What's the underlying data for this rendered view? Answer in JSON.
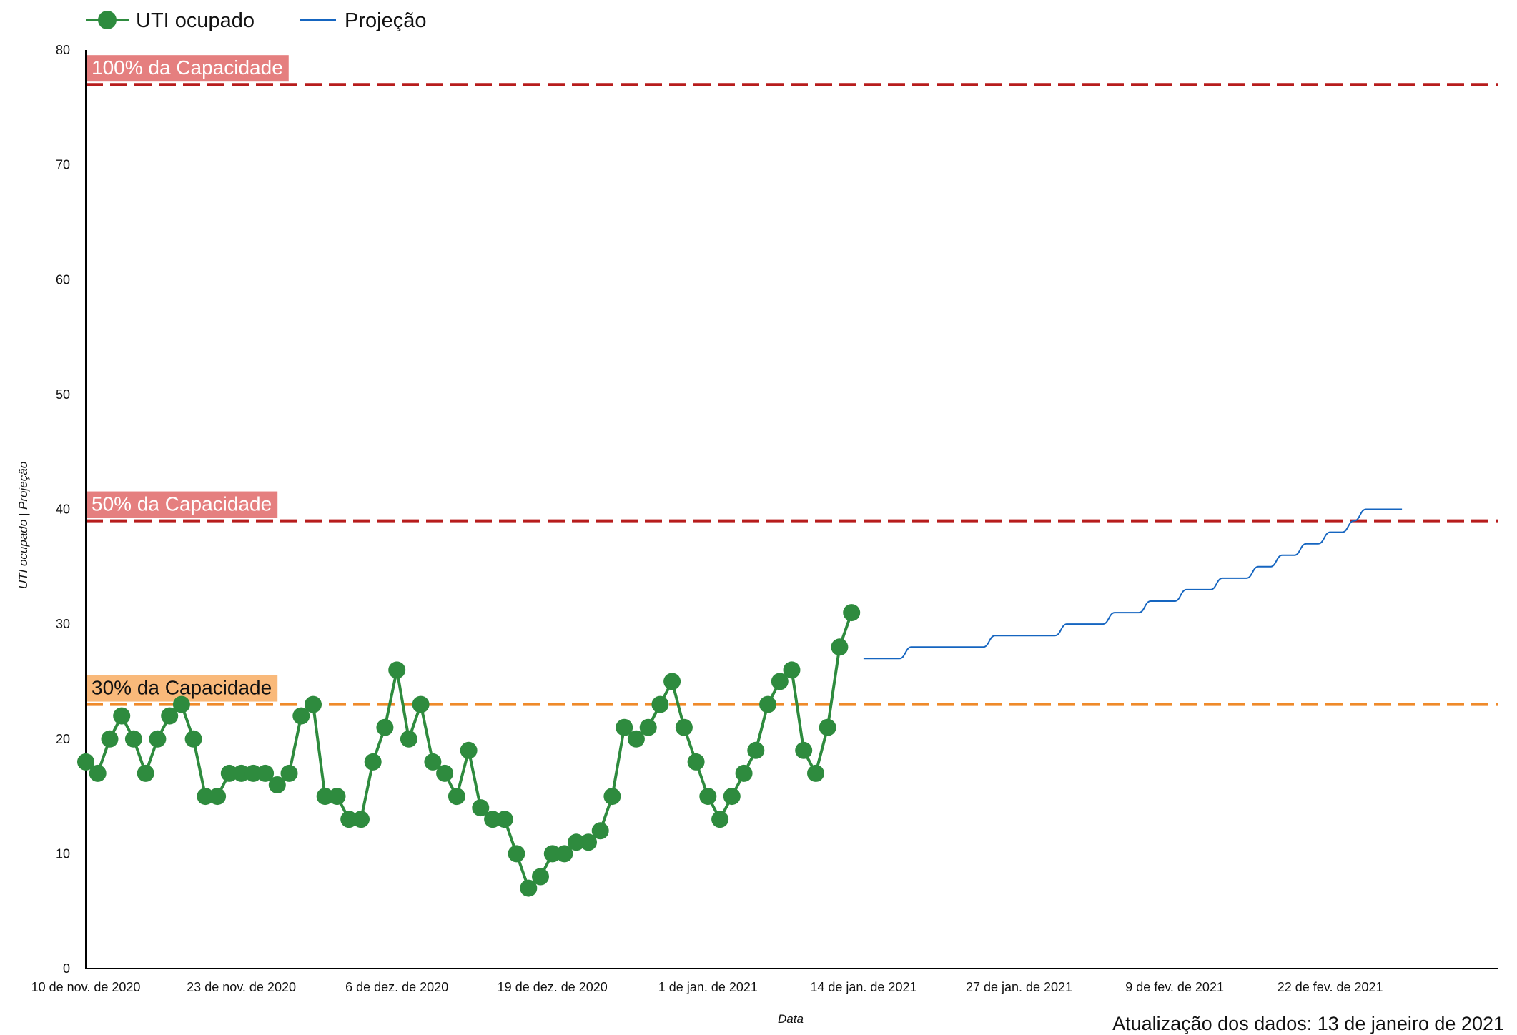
{
  "chart_data": {
    "type": "line",
    "x_axis_label": "Data",
    "y_axis_label": "UTI ocupado | Projeção",
    "y_range": [
      0,
      80
    ],
    "y_ticks": [
      0,
      10,
      20,
      30,
      40,
      50,
      60,
      70,
      80
    ],
    "x_range": [
      "2020-11-10",
      "2021-03-08"
    ],
    "x_tick_labels": [
      {
        "date": "2020-11-10",
        "label": "10 de nov. de 2020"
      },
      {
        "date": "2020-11-23",
        "label": "23 de nov. de 2020"
      },
      {
        "date": "2020-12-06",
        "label": "6 de dez. de 2020"
      },
      {
        "date": "2020-12-19",
        "label": "19 de dez. de 2020"
      },
      {
        "date": "2021-01-01",
        "label": "1 de jan. de 2021"
      },
      {
        "date": "2021-01-14",
        "label": "14 de jan. de 2021"
      },
      {
        "date": "2021-01-27",
        "label": "27 de jan. de 2021"
      },
      {
        "date": "2021-02-09",
        "label": "9 de fev. de 2021"
      },
      {
        "date": "2021-02-22",
        "label": "22 de fev. de 2021"
      }
    ],
    "grid": false,
    "legend_position": "top-left",
    "series": [
      {
        "name": "UTI ocupado",
        "color": "#2e8b3e",
        "marker": "circle",
        "points": [
          {
            "date": "2020-11-10",
            "value": 18
          },
          {
            "date": "2020-11-11",
            "value": 17
          },
          {
            "date": "2020-11-12",
            "value": 20
          },
          {
            "date": "2020-11-13",
            "value": 22
          },
          {
            "date": "2020-11-14",
            "value": 20
          },
          {
            "date": "2020-11-15",
            "value": 17
          },
          {
            "date": "2020-11-16",
            "value": 20
          },
          {
            "date": "2020-11-17",
            "value": 22
          },
          {
            "date": "2020-11-18",
            "value": 23
          },
          {
            "date": "2020-11-19",
            "value": 20
          },
          {
            "date": "2020-11-20",
            "value": 15
          },
          {
            "date": "2020-11-21",
            "value": 15
          },
          {
            "date": "2020-11-22",
            "value": 17
          },
          {
            "date": "2020-11-23",
            "value": 17
          },
          {
            "date": "2020-11-24",
            "value": 17
          },
          {
            "date": "2020-11-25",
            "value": 17
          },
          {
            "date": "2020-11-26",
            "value": 16
          },
          {
            "date": "2020-11-27",
            "value": 17
          },
          {
            "date": "2020-11-28",
            "value": 22
          },
          {
            "date": "2020-11-29",
            "value": 23
          },
          {
            "date": "2020-11-30",
            "value": 15
          },
          {
            "date": "2020-12-01",
            "value": 15
          },
          {
            "date": "2020-12-02",
            "value": 13
          },
          {
            "date": "2020-12-03",
            "value": 13
          },
          {
            "date": "2020-12-04",
            "value": 18
          },
          {
            "date": "2020-12-05",
            "value": 21
          },
          {
            "date": "2020-12-06",
            "value": 26
          },
          {
            "date": "2020-12-07",
            "value": 20
          },
          {
            "date": "2020-12-08",
            "value": 23
          },
          {
            "date": "2020-12-09",
            "value": 18
          },
          {
            "date": "2020-12-10",
            "value": 17
          },
          {
            "date": "2020-12-11",
            "value": 15
          },
          {
            "date": "2020-12-12",
            "value": 19
          },
          {
            "date": "2020-12-13",
            "value": 14
          },
          {
            "date": "2020-12-14",
            "value": 13
          },
          {
            "date": "2020-12-15",
            "value": 13
          },
          {
            "date": "2020-12-16",
            "value": 10
          },
          {
            "date": "2020-12-17",
            "value": 7
          },
          {
            "date": "2020-12-18",
            "value": 8
          },
          {
            "date": "2020-12-19",
            "value": 10
          },
          {
            "date": "2020-12-20",
            "value": 10
          },
          {
            "date": "2020-12-21",
            "value": 11
          },
          {
            "date": "2020-12-22",
            "value": 11
          },
          {
            "date": "2020-12-23",
            "value": 12
          },
          {
            "date": "2020-12-24",
            "value": 15
          },
          {
            "date": "2020-12-25",
            "value": 21
          },
          {
            "date": "2020-12-26",
            "value": 20
          },
          {
            "date": "2020-12-27",
            "value": 21
          },
          {
            "date": "2020-12-28",
            "value": 23
          },
          {
            "date": "2020-12-29",
            "value": 25
          },
          {
            "date": "2020-12-30",
            "value": 21
          },
          {
            "date": "2020-12-31",
            "value": 18
          },
          {
            "date": "2021-01-01",
            "value": 15
          },
          {
            "date": "2021-01-02",
            "value": 13
          },
          {
            "date": "2021-01-03",
            "value": 15
          },
          {
            "date": "2021-01-04",
            "value": 17
          },
          {
            "date": "2021-01-05",
            "value": 19
          },
          {
            "date": "2021-01-06",
            "value": 23
          },
          {
            "date": "2021-01-07",
            "value": 25
          },
          {
            "date": "2021-01-08",
            "value": 26
          },
          {
            "date": "2021-01-09",
            "value": 19
          },
          {
            "date": "2021-01-10",
            "value": 17
          },
          {
            "date": "2021-01-11",
            "value": 21
          },
          {
            "date": "2021-01-12",
            "value": 28
          },
          {
            "date": "2021-01-13",
            "value": 31
          }
        ]
      },
      {
        "name": "Projeção",
        "color": "#1565c0",
        "marker": "none",
        "points": [
          {
            "date": "2021-01-14",
            "value": 27
          },
          {
            "date": "2021-01-17",
            "value": 27
          },
          {
            "date": "2021-01-18",
            "value": 28
          },
          {
            "date": "2021-01-24",
            "value": 28
          },
          {
            "date": "2021-01-25",
            "value": 29
          },
          {
            "date": "2021-01-30",
            "value": 29
          },
          {
            "date": "2021-01-31",
            "value": 30
          },
          {
            "date": "2021-02-03",
            "value": 30
          },
          {
            "date": "2021-02-04",
            "value": 31
          },
          {
            "date": "2021-02-06",
            "value": 31
          },
          {
            "date": "2021-02-07",
            "value": 32
          },
          {
            "date": "2021-02-09",
            "value": 32
          },
          {
            "date": "2021-02-10",
            "value": 33
          },
          {
            "date": "2021-02-12",
            "value": 33
          },
          {
            "date": "2021-02-13",
            "value": 34
          },
          {
            "date": "2021-02-15",
            "value": 34
          },
          {
            "date": "2021-02-16",
            "value": 35
          },
          {
            "date": "2021-02-17",
            "value": 35
          },
          {
            "date": "2021-02-18",
            "value": 36
          },
          {
            "date": "2021-02-19",
            "value": 36
          },
          {
            "date": "2021-02-20",
            "value": 37
          },
          {
            "date": "2021-02-21",
            "value": 37
          },
          {
            "date": "2021-02-22",
            "value": 38
          },
          {
            "date": "2021-02-23",
            "value": 38
          },
          {
            "date": "2021-02-24",
            "value": 39
          },
          {
            "date": "2021-02-25",
            "value": 40
          },
          {
            "date": "2021-02-28",
            "value": 40
          }
        ]
      }
    ],
    "reference_lines": [
      {
        "value": 77,
        "label": "100% da Capacidade",
        "line_color": "#b71c1c",
        "label_bg": "#e57f7f",
        "label_color": "#ffffff"
      },
      {
        "value": 39,
        "label": "50% da Capacidade",
        "line_color": "#b71c1c",
        "label_bg": "#e57f7f",
        "label_color": "#ffffff"
      },
      {
        "value": 23,
        "label": "30% da Capacidade",
        "line_color": "#ef8a2a",
        "label_bg": "#f9b97a",
        "label_color": "#111111"
      }
    ]
  },
  "footer": {
    "update_text": "Atualização dos dados: 13 de janeiro de 2021"
  }
}
